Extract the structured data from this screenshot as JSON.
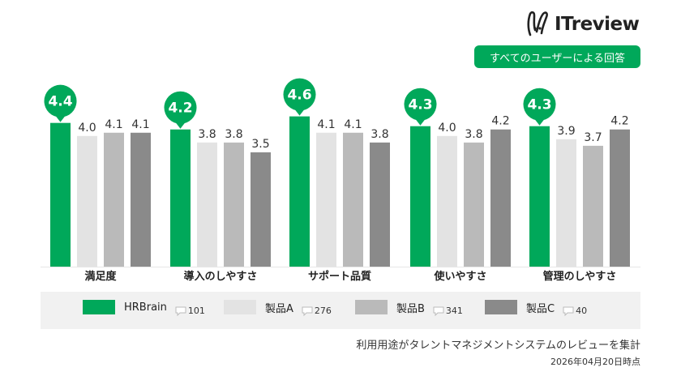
{
  "brand": {
    "logo_text": "ITreview",
    "logo_icon": "rabbit-ears-icon",
    "accent": "#00a85a"
  },
  "scope_badge": "すべてのユーザーによる回答",
  "legend": [
    {
      "name": "HRBrain",
      "count": "101",
      "color": "#00a85a"
    },
    {
      "name": "製品A",
      "count": "276",
      "color": "#e3e3e3"
    },
    {
      "name": "製品B",
      "count": "341",
      "color": "#bababa"
    },
    {
      "name": "製品C",
      "count": "40",
      "color": "#8a8a8a"
    }
  ],
  "footer": {
    "note": "利用用途がタレントマネジメントシステムのレビューを集計",
    "date": "2026年04月20日時点"
  },
  "chart_data": {
    "type": "bar",
    "categories": [
      "満足度",
      "導入のしやすさ",
      "サポート品質",
      "使いやすさ",
      "管理のしやすさ"
    ],
    "series": [
      {
        "name": "HRBrain",
        "values": [
          4.4,
          4.2,
          4.6,
          4.3,
          4.3
        ],
        "value_labels": [
          "4.4",
          "4.2",
          "4.6",
          "4.3",
          "4.3"
        ]
      },
      {
        "name": "製品A",
        "values": [
          4.0,
          3.8,
          4.1,
          4.0,
          3.9
        ],
        "value_labels": [
          "4.0",
          "3.8",
          "4.1",
          "4.0",
          "3.9"
        ]
      },
      {
        "name": "製品B",
        "values": [
          4.1,
          3.8,
          4.1,
          3.8,
          3.7
        ],
        "value_labels": [
          "4.1",
          "3.8",
          "4.1",
          "3.8",
          "3.7"
        ]
      },
      {
        "name": "製品C",
        "values": [
          4.1,
          3.5,
          3.8,
          4.2,
          4.2
        ],
        "value_labels": [
          "4.1",
          "3.5",
          "3.8",
          "4.2",
          "4.2"
        ]
      }
    ],
    "ylim": [
      0,
      5
    ],
    "grid": false,
    "legend_position": "bottom",
    "highlight_series": "HRBrain"
  }
}
